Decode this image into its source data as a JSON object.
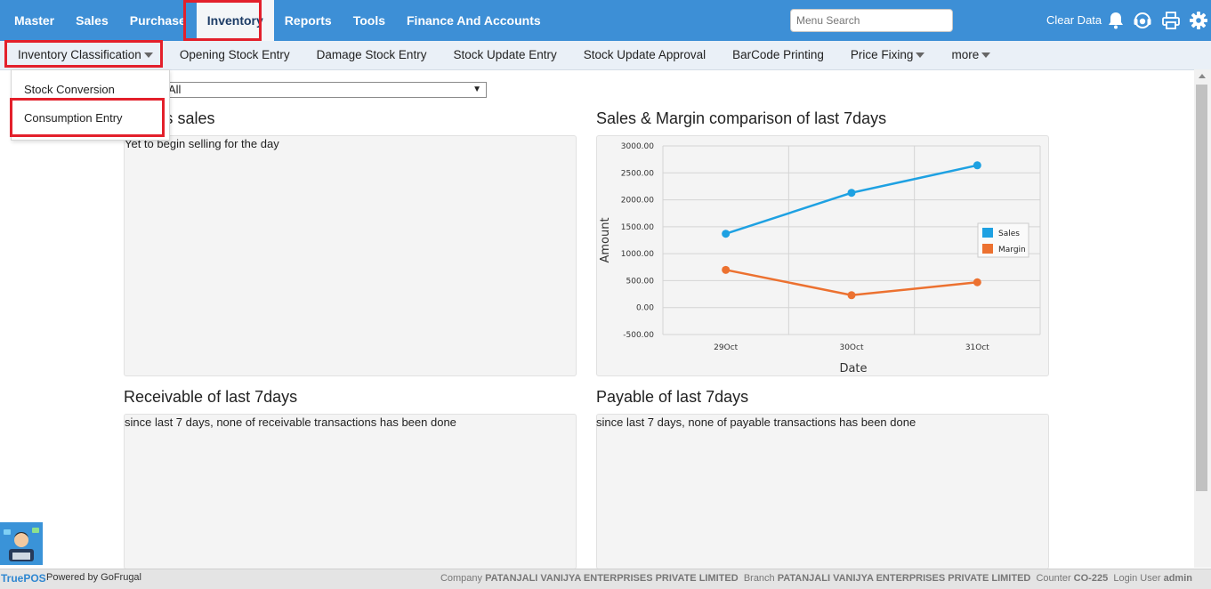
{
  "topnav": {
    "items": [
      "Master",
      "Sales",
      "Purchase",
      "Inventory",
      "Reports",
      "Tools",
      "Finance And Accounts"
    ],
    "active": "Inventory",
    "search_placeholder": "Menu Search",
    "clear_data": "Clear Data",
    "icons": [
      "bell-icon",
      "support-headset-icon",
      "printer-icon",
      "gear-icon"
    ]
  },
  "subnav": {
    "items": [
      "Inventory Classification",
      "Opening Stock Entry",
      "Damage Stock Entry",
      "Stock Update Entry",
      "Stock Update Approval",
      "BarCode Printing",
      "Price Fixing",
      "more"
    ]
  },
  "dropdown": {
    "items": [
      "Stock Conversion",
      "Consumption Entry"
    ]
  },
  "filter": {
    "selected": "All"
  },
  "panels": {
    "todays_sales": {
      "title": "'s sales",
      "message": "Yet to begin selling for the day"
    },
    "sales_margin": {
      "title": "Sales & Margin comparison of last 7days"
    },
    "receivable": {
      "title": "Receivable of last 7days",
      "message": "since last 7 days, none of receivable transactions has been done"
    },
    "payable": {
      "title": "Payable of last 7days",
      "message": "since last 7 days, none of payable transactions has been done"
    }
  },
  "chart_data": {
    "type": "line",
    "categories": [
      "29Oct",
      "30Oct",
      "31Oct"
    ],
    "series": [
      {
        "name": "Sales",
        "values": [
          1370,
          2130,
          2640
        ],
        "color": "#1ea1e2"
      },
      {
        "name": "Margin",
        "values": [
          700,
          230,
          470
        ],
        "color": "#ec7130"
      }
    ],
    "xlabel": "Date",
    "ylabel": "Amount",
    "ylim": [
      -500,
      3000
    ],
    "yticks": [
      "3000.00",
      "2500.00",
      "2000.00",
      "1500.00",
      "1000.00",
      "500.00",
      "0.00",
      "-500.00"
    ],
    "grid": true,
    "legend": "right"
  },
  "footer": {
    "brand": "TruePOS",
    "powered_by": "Powered by GoFrugal",
    "company_label": "Company",
    "company": "PATANJALI VANIJYA ENTERPRISES PRIVATE LIMITED",
    "branch_label": "Branch",
    "branch": "PATANJALI VANIJYA ENTERPRISES PRIVATE LIMITED",
    "counter_label": "Counter",
    "counter": "CO-225",
    "user_label": "Login User",
    "user": "admin"
  }
}
